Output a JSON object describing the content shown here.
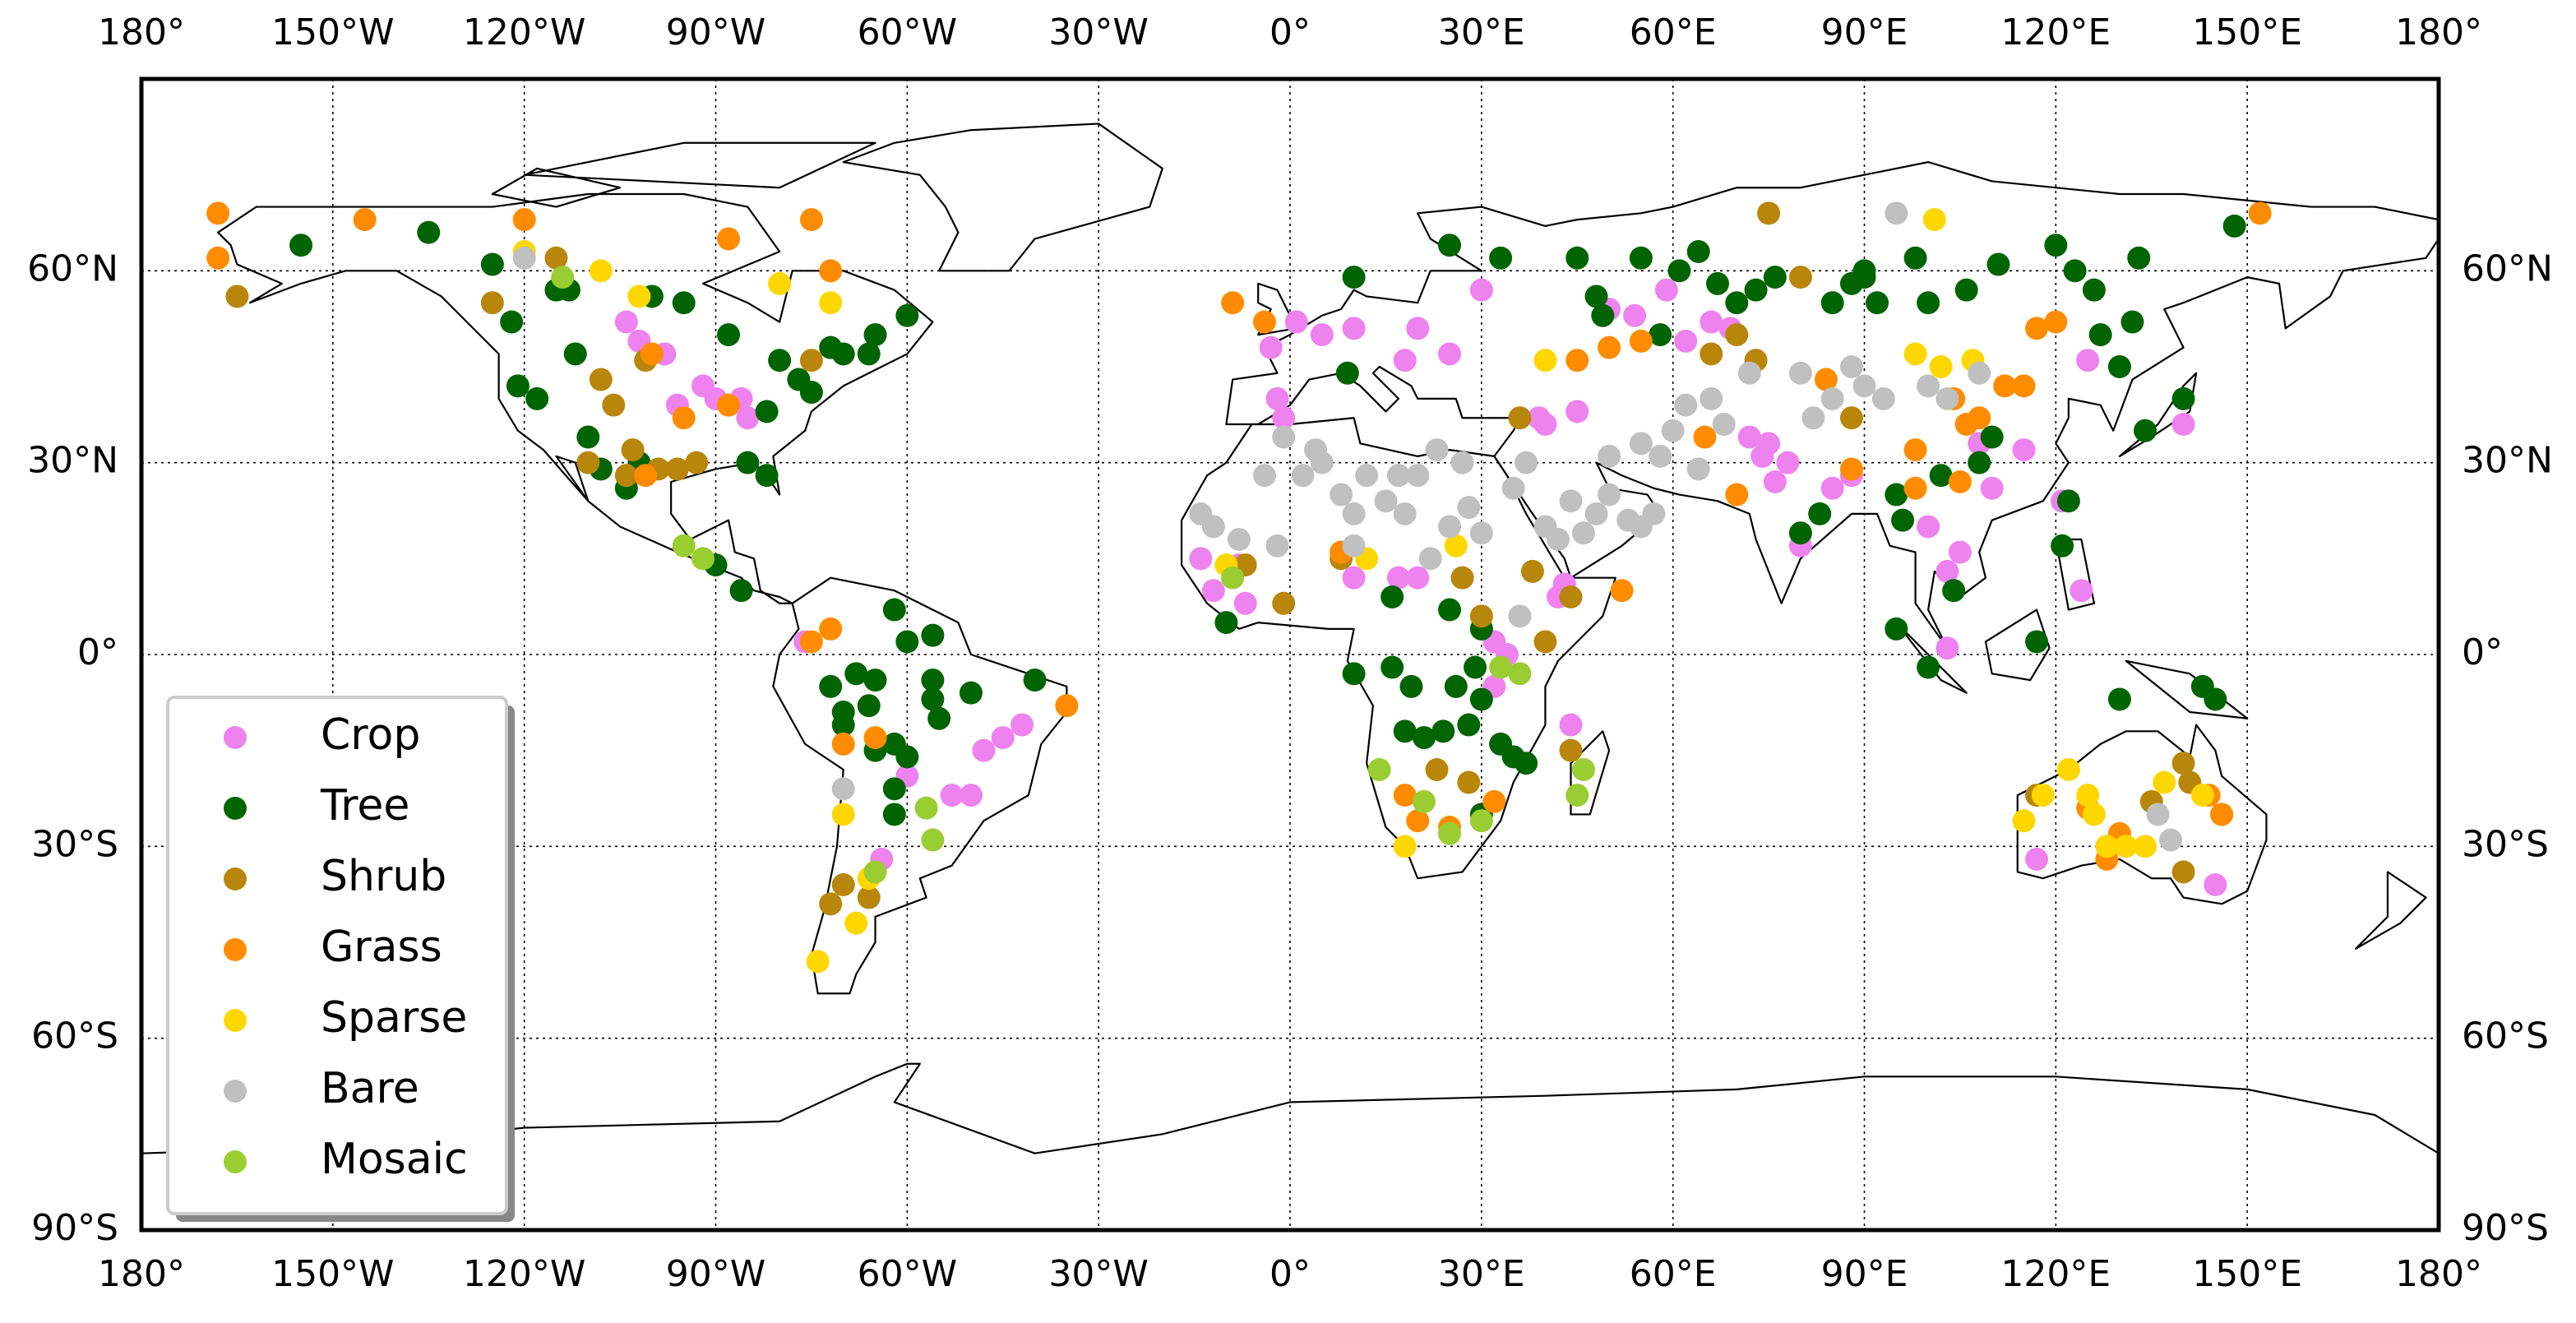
{
  "chart_data": {
    "type": "scatter",
    "xlim": [
      -180,
      180
    ],
    "ylim": [
      -90,
      90
    ],
    "xticks": [
      {
        "value": -180,
        "label": "180°"
      },
      {
        "value": -150,
        "label": "150°W"
      },
      {
        "value": -120,
        "label": "120°W"
      },
      {
        "value": -90,
        "label": "90°W"
      },
      {
        "value": -60,
        "label": "60°W"
      },
      {
        "value": -30,
        "label": "30°W"
      },
      {
        "value": 0,
        "label": "0°"
      },
      {
        "value": 30,
        "label": "30°E"
      },
      {
        "value": 60,
        "label": "60°E"
      },
      {
        "value": 90,
        "label": "90°E"
      },
      {
        "value": 120,
        "label": "120°E"
      },
      {
        "value": 150,
        "label": "150°E"
      },
      {
        "value": 180,
        "label": "180°"
      }
    ],
    "yticks": [
      {
        "value": -90,
        "label": "90°S"
      },
      {
        "value": -60,
        "label": "60°S"
      },
      {
        "value": -30,
        "label": "30°S"
      },
      {
        "value": 0,
        "label": "0°"
      },
      {
        "value": 30,
        "label": "30°N"
      },
      {
        "value": 60,
        "label": "60°N"
      }
    ],
    "grid": true,
    "legend": "lower left",
    "series": [
      {
        "name": "Crop",
        "color": "#ee82ee",
        "x": [
          -104,
          -102,
          -98,
          -96,
          -92,
          -90,
          -86,
          -85,
          -76,
          -60,
          -53,
          -50,
          -48,
          -45,
          -42,
          -64,
          -3,
          1,
          5,
          -2,
          -1,
          -14,
          -12,
          10,
          20,
          25,
          30,
          18,
          17,
          20,
          27,
          10,
          32,
          32,
          34,
          39,
          40,
          42,
          44,
          50,
          54,
          59,
          62,
          66,
          69,
          72,
          74,
          76,
          78,
          80,
          85,
          88,
          100,
          103,
          105,
          108,
          110,
          115,
          121,
          124,
          125,
          130,
          140,
          117,
          145,
          45,
          43,
          103,
          75,
          -8,
          -7
        ],
        "values": [
          52,
          49,
          47,
          39,
          42,
          40,
          40,
          37,
          2,
          -19,
          -22,
          -22,
          -15,
          -13,
          -11,
          -32,
          48,
          52,
          50,
          40,
          37,
          15,
          10,
          51,
          51,
          47,
          57,
          46,
          12,
          12,
          12,
          12,
          2,
          -5,
          0,
          37,
          36,
          9,
          -11,
          54,
          53,
          57,
          49,
          52,
          51,
          34,
          31,
          27,
          30,
          17,
          26,
          28,
          20,
          13,
          16,
          33,
          26,
          32,
          24,
          10,
          46,
          45,
          36,
          -32,
          -36,
          38,
          11,
          1,
          33,
          14,
          8
        ]
      },
      {
        "name": "Tree",
        "color": "#006400",
        "x": [
          -155,
          -135,
          -125,
          -122,
          -121,
          -118,
          -115,
          -113,
          -112,
          -110,
          -108,
          -104,
          -102,
          -100,
          -95,
          -88,
          -82,
          -80,
          -77,
          -75,
          -72,
          -70,
          -66,
          -65,
          -60,
          -85,
          -82,
          -90,
          -86,
          -62,
          -60,
          -68,
          -72,
          -66,
          -70,
          -65,
          -62,
          -62,
          -62,
          -56,
          -56,
          -55,
          -50,
          -40,
          -56,
          -10,
          9,
          10,
          16,
          16,
          18,
          19,
          21,
          26,
          24,
          25,
          28,
          29,
          30,
          33,
          35,
          30,
          37,
          30,
          10,
          25,
          33,
          45,
          48,
          49,
          55,
          58,
          61,
          64,
          67,
          70,
          73,
          76,
          80,
          83,
          85,
          88,
          90,
          90,
          92,
          95,
          96,
          98,
          100,
          102,
          104,
          106,
          108,
          110,
          111,
          120,
          123,
          126,
          127,
          130,
          132,
          133,
          134,
          140,
          148,
          95,
          100,
          117,
          121,
          122,
          130,
          143,
          145,
          -70,
          -65,
          -60
        ],
        "values": [
          64,
          66,
          61,
          52,
          42,
          40,
          57,
          57,
          47,
          34,
          29,
          26,
          30,
          56,
          55,
          50,
          38,
          46,
          43,
          41,
          48,
          47,
          47,
          50,
          53,
          30,
          28,
          14,
          10,
          7,
          2,
          -3,
          -5,
          -8,
          -11,
          -15,
          -14,
          -25,
          -21,
          -4,
          -7,
          -10,
          -6,
          -4,
          3,
          5,
          44,
          -3,
          9,
          -2,
          -12,
          -5,
          -13,
          -5,
          -12,
          7,
          -11,
          -2,
          4,
          -14,
          -16,
          -25,
          -17,
          -7,
          59,
          64,
          62,
          62,
          56,
          53,
          62,
          50,
          60,
          63,
          58,
          55,
          57,
          59,
          19,
          22,
          55,
          58,
          59,
          60,
          55,
          25,
          21,
          62,
          55,
          28,
          10,
          57,
          30,
          34,
          61,
          64,
          60,
          57,
          50,
          45,
          52,
          62,
          35,
          40,
          67,
          4,
          -2,
          2,
          17,
          24,
          -7,
          -5,
          -7,
          -9,
          -4,
          -16
        ]
      },
      {
        "name": "Shrub",
        "color": "#b8860b",
        "x": [
          -165,
          -108,
          -106,
          -103,
          -101,
          -99,
          -96,
          -93,
          -110,
          -104,
          -72,
          -70,
          -66,
          -7,
          -1,
          8,
          23,
          28,
          30,
          40,
          44,
          38,
          27,
          36,
          44,
          66,
          73,
          75,
          80,
          88,
          70,
          -75,
          146,
          140,
          140,
          141,
          135,
          117,
          -125,
          -115
        ],
        "values": [
          56,
          43,
          39,
          32,
          46,
          29,
          29,
          30,
          30,
          28,
          -39,
          -36,
          -38,
          14,
          8,
          15,
          -18,
          -20,
          6,
          2,
          9,
          13,
          12,
          37,
          -15,
          47,
          46,
          69,
          59,
          37,
          50,
          46,
          -25,
          -34,
          -17,
          -20,
          -23,
          -22,
          55,
          62
        ]
      },
      {
        "name": "Grass",
        "color": "#ff8c00",
        "x": [
          -168,
          -145,
          -120,
          -100,
          -95,
          -88,
          -75,
          -72,
          -88,
          -101,
          -72,
          -70,
          -65,
          -35,
          -75,
          -9,
          -4,
          8,
          18,
          20,
          25,
          32,
          52,
          45,
          50,
          55,
          65,
          70,
          84,
          88,
          98,
          104,
          106,
          112,
          115,
          117,
          120,
          152,
          128,
          130,
          125,
          146,
          144,
          98,
          105,
          108,
          -168
        ],
        "values": [
          69,
          68,
          68,
          47,
          37,
          39,
          68,
          60,
          65,
          28,
          4,
          -14,
          -13,
          -8,
          2,
          55,
          52,
          16,
          -22,
          -26,
          -27,
          -23,
          10,
          46,
          48,
          49,
          34,
          25,
          43,
          29,
          32,
          40,
          36,
          42,
          42,
          51,
          52,
          69,
          -32,
          -28,
          -24,
          -25,
          -22,
          26,
          27,
          37,
          62
        ]
      },
      {
        "name": "Sparse",
        "color": "#ffd700",
        "x": [
          -120,
          -108,
          -102,
          -80,
          -72,
          -70,
          -68,
          -74,
          -66,
          18,
          26,
          12,
          101,
          102,
          98,
          107,
          118,
          115,
          122,
          125,
          126,
          131,
          134,
          137,
          143,
          128,
          -10,
          40
        ],
        "values": [
          63,
          60,
          56,
          58,
          55,
          -25,
          -42,
          -48,
          -35,
          -30,
          17,
          15,
          68,
          45,
          47,
          46,
          -22,
          -26,
          -18,
          -22,
          -25,
          -30,
          -30,
          -20,
          -22,
          -30,
          14,
          46
        ]
      },
      {
        "name": "Bare",
        "color": "#c0c0c0",
        "x": [
          -120,
          -70,
          -14,
          -12,
          -8,
          -2,
          -4,
          2,
          5,
          8,
          10,
          10,
          12,
          15,
          18,
          20,
          22,
          25,
          27,
          28,
          30,
          35,
          37,
          40,
          42,
          44,
          46,
          48,
          50,
          53,
          55,
          57,
          58,
          60,
          62,
          64,
          66,
          68,
          72,
          80,
          82,
          85,
          88,
          90,
          93,
          95,
          100,
          103,
          108,
          136,
          138,
          4,
          -1,
          17,
          55,
          50,
          36,
          23
        ],
        "values": [
          62,
          -21,
          22,
          20,
          18,
          17,
          28,
          28,
          30,
          25,
          22,
          17,
          28,
          24,
          22,
          28,
          15,
          20,
          30,
          23,
          19,
          26,
          30,
          20,
          18,
          24,
          19,
          22,
          25,
          21,
          20,
          22,
          31,
          35,
          39,
          29,
          40,
          36,
          44,
          44,
          37,
          40,
          45,
          42,
          40,
          69,
          42,
          40,
          44,
          -25,
          -29,
          32,
          34,
          28,
          33,
          31,
          6,
          32
        ]
      },
      {
        "name": "Mosaic",
        "color": "#9acd32",
        "x": [
          -114,
          -95,
          -92,
          -57,
          -56,
          -65,
          -9,
          14,
          21,
          25,
          30,
          33,
          36,
          46,
          45
        ],
        "values": [
          59,
          17,
          15,
          -24,
          -29,
          -34,
          12,
          -18,
          -23,
          -28,
          -26,
          -2,
          -3,
          -18,
          -22
        ]
      }
    ]
  }
}
